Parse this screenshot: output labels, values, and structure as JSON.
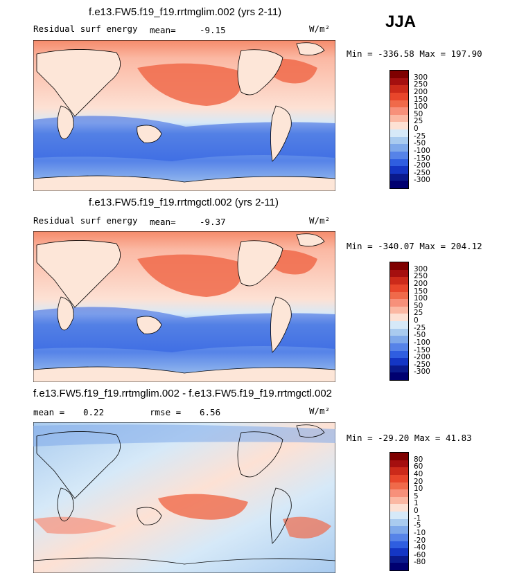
{
  "season": "JJA",
  "panels": [
    {
      "title": "f.e13.FW5.f19_f19.rrtmglim.002 (yrs 2-11)",
      "left_label": "Residual surf energy",
      "stat_label": "mean=",
      "stat_value": "-9.15",
      "units": "W/m²",
      "minmax": "Min = -336.58 Max = 197.90",
      "levels": [
        "300",
        "250",
        "200",
        "150",
        "100",
        "50",
        "25",
        "0",
        "-25",
        "-50",
        "-100",
        "-150",
        "-200",
        "-250",
        "-300"
      ]
    },
    {
      "title": "f.e13.FW5.f19_f19.rrtmgctl.002 (yrs 2-11)",
      "left_label": "Residual surf energy",
      "stat_label": "mean=",
      "stat_value": "-9.37",
      "units": "W/m²",
      "minmax": "Min = -340.07 Max = 204.12",
      "levels": [
        "300",
        "250",
        "200",
        "150",
        "100",
        "50",
        "25",
        "0",
        "-25",
        "-50",
        "-100",
        "-150",
        "-200",
        "-250",
        "-300"
      ]
    },
    {
      "title": "f.e13.FW5.f19_f19.rrtmglim.002 - f.e13.FW5.f19_f19.rrtmgctl.002",
      "mean_label": "mean =",
      "mean_value": "0.22",
      "rmse_label": "rmse =",
      "rmse_value": "6.56",
      "units": "W/m²",
      "minmax": "Min = -29.20 Max =  41.83",
      "levels": [
        "80",
        "60",
        "40",
        "20",
        "10",
        "5",
        "1",
        "0",
        "-1",
        "-5",
        "-10",
        "-20",
        "-40",
        "-60",
        "-80"
      ]
    }
  ],
  "colors": {
    "scale": [
      "#7f0000",
      "#a50f0f",
      "#cc2a1a",
      "#e8462b",
      "#f06a4a",
      "#f7907a",
      "#fbb8a3",
      "#fde1d4",
      "#d6e9f8",
      "#a9cbef",
      "#7fa9ea",
      "#5683e8",
      "#2f5ee0",
      "#1436c4",
      "#0a1a8c",
      "#000070"
    ],
    "land": "#fde6d8",
    "coast": "#000000"
  }
}
